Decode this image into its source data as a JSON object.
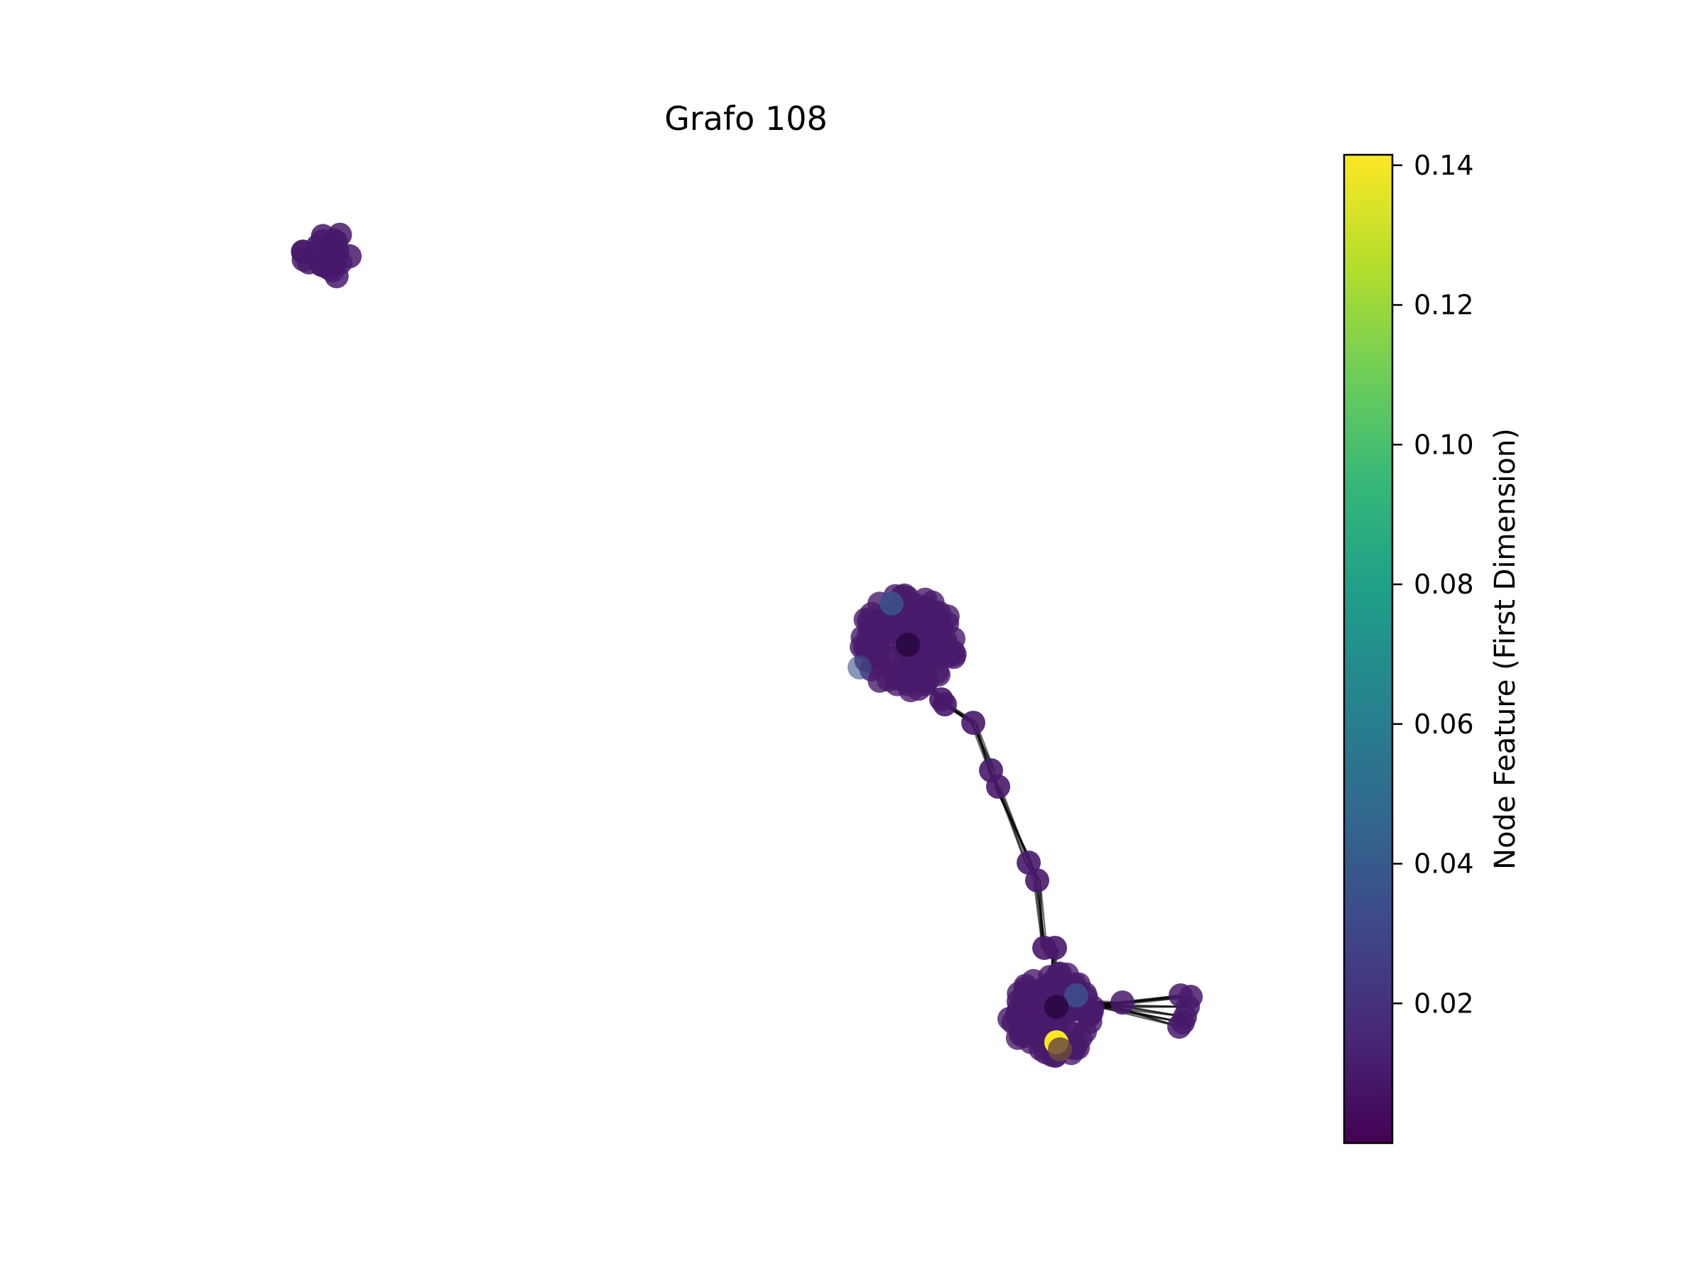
{
  "title": "Grafo 108",
  "colorbar": {
    "label": "Node Feature (First Dimension)",
    "min": 0.0,
    "max": 0.1415,
    "ticks": [
      "0.02",
      "0.04",
      "0.06",
      "0.08",
      "0.10",
      "0.12",
      "0.14"
    ],
    "tick_values": [
      0.02,
      0.04,
      0.06,
      0.08,
      0.1,
      0.12,
      0.14
    ],
    "colormap": "viridis",
    "colormap_stops": [
      "#440154",
      "#482878",
      "#3e4989",
      "#31688e",
      "#26828e",
      "#1f9e89",
      "#35b779",
      "#6ece58",
      "#b5de2b",
      "#fde725"
    ]
  },
  "graph": {
    "node_color_dominant": "#481a6c",
    "node_color_highlight": "#fde725",
    "node_color_blueish": "#3b528b",
    "edge_color": "#000000",
    "components": 2
  }
}
